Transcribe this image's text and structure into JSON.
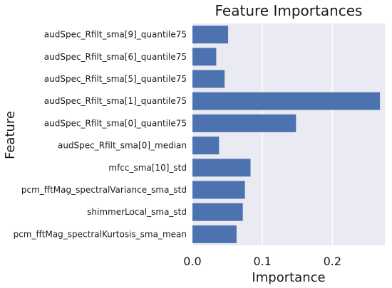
{
  "chart_data": {
    "type": "bar",
    "orientation": "horizontal",
    "title": "Feature Importances",
    "xlabel": "Importance",
    "ylabel": "Feature",
    "categories": [
      "audSpec_Rfilt_sma[9]_quantile75",
      "audSpec_Rfilt_sma[6]_quantile75",
      "audSpec_Rfilt_sma[5]_quantile75",
      "audSpec_Rfilt_sma[1]_quantile75",
      "audSpec_Rfilt_sma[0]_quantile75",
      "audSpec_Rfilt_sma[0]_median",
      "mfcc_sma[10]_std",
      "pcm_fftMag_spectralVariance_sma_std",
      "shimmerLocal_sma_std",
      "pcm_fftMag_spectralKurtosis_sma_mean"
    ],
    "values": [
      0.051,
      0.034,
      0.046,
      0.268,
      0.148,
      0.038,
      0.083,
      0.075,
      0.072,
      0.063
    ],
    "xlim": [
      0,
      0.275
    ],
    "xticks": [
      0.0,
      0.1,
      0.2
    ],
    "xtick_labels": [
      "0.0",
      "0.1",
      "0.2"
    ],
    "grid": true,
    "bar_color": "#4c72b0",
    "plot_background": "#eaeaf2",
    "grid_color": "#ffffff"
  }
}
